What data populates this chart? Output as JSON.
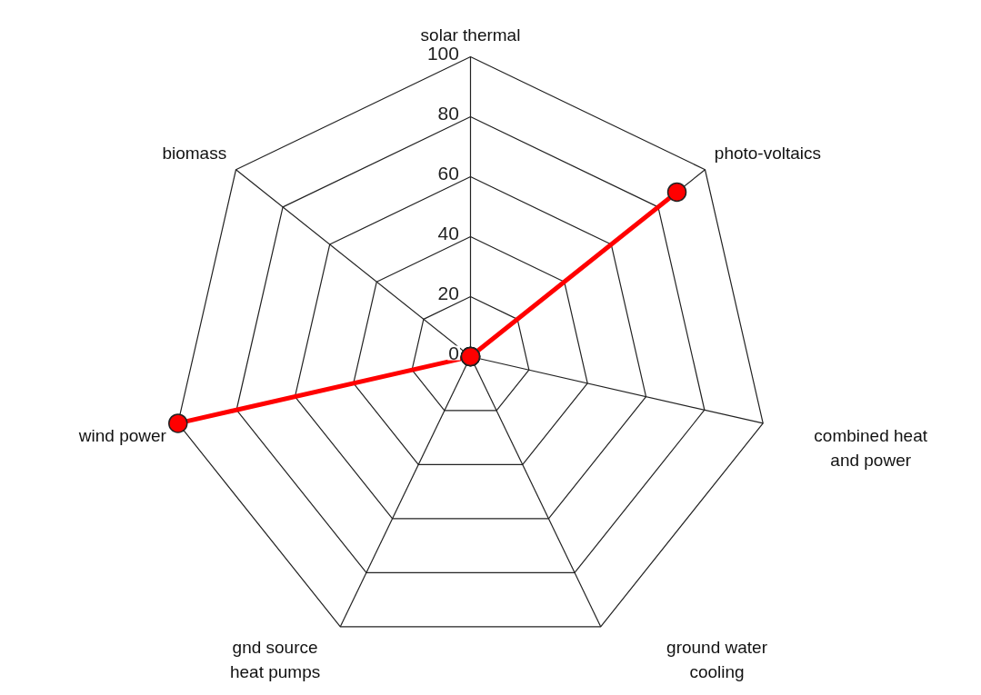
{
  "chart_data": {
    "type": "radar",
    "categories": [
      "solar thermal",
      "photo-voltaics",
      "combined heat and power",
      "ground water cooling",
      "gnd source heat pumps",
      "wind power",
      "biomass"
    ],
    "series": [
      {
        "color": "#ff0000",
        "values": [
          0,
          88,
          0,
          0,
          0,
          100,
          0
        ]
      }
    ],
    "ylim": [
      0,
      100
    ],
    "yticks": [
      0,
      20,
      40,
      60,
      80,
      100
    ],
    "marker": "circle",
    "line_style": "solid",
    "grid": true
  }
}
